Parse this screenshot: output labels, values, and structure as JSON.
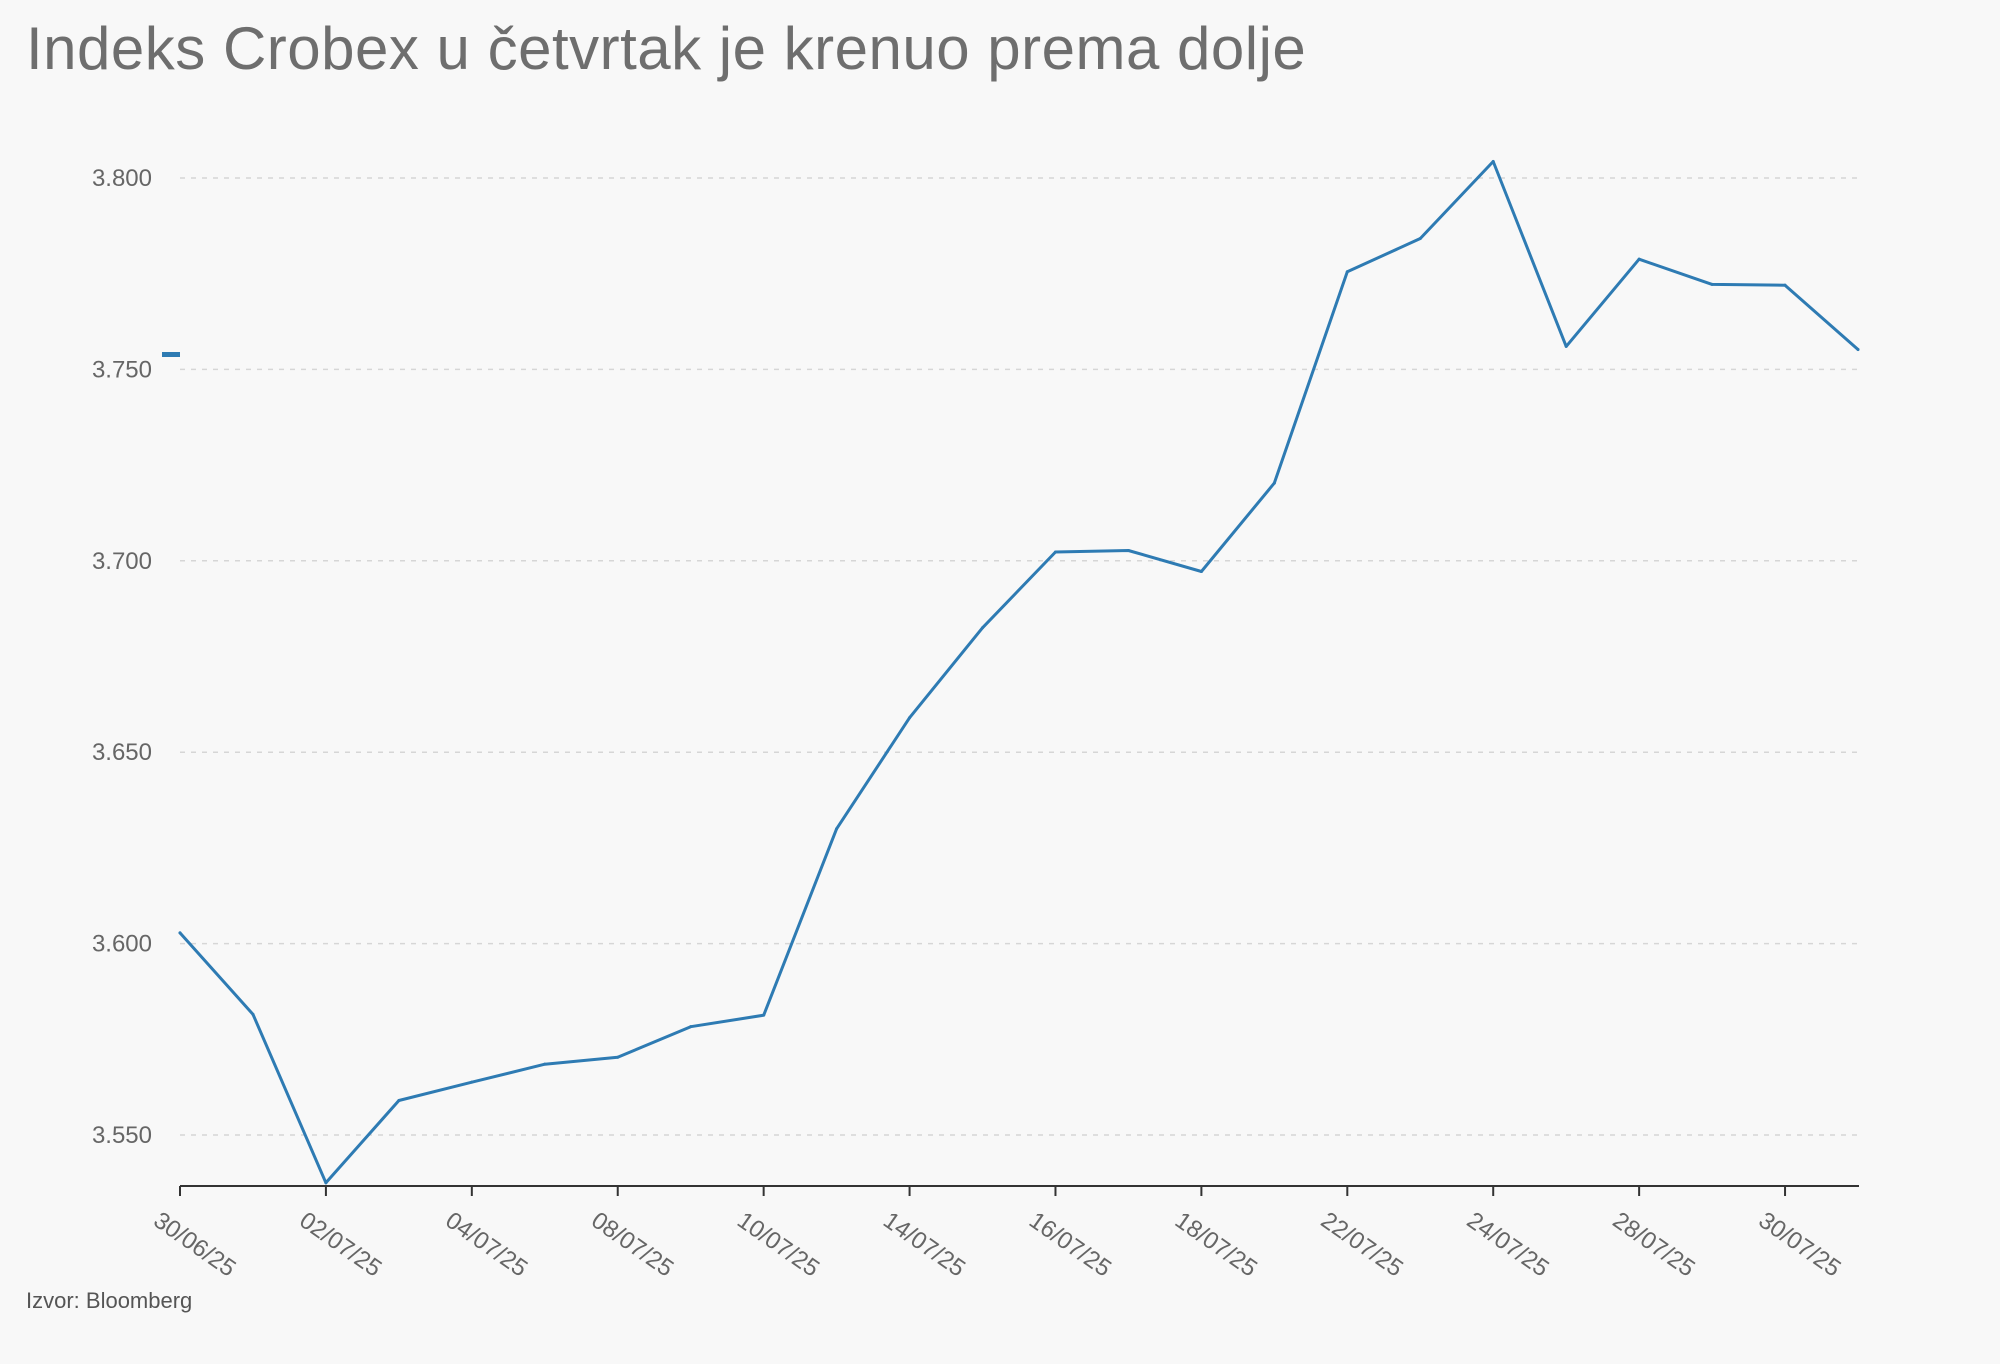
{
  "title": "Indeks Crobex u četvrtak je krenuo prema dolje",
  "source": "Izvor: Bloomberg",
  "chart_data": {
    "type": "line",
    "title": "Indeks Crobex u četvrtak je krenuo prema dolje",
    "xlabel": "",
    "ylabel": "",
    "ylim": [
      3537,
      3805
    ],
    "yticks": [
      3550,
      3600,
      3650,
      3700,
      3750,
      3800
    ],
    "ytick_labels": [
      "3.550",
      "3.600",
      "3.650",
      "3.700",
      "3.750",
      "3.800"
    ],
    "xtick_labels": [
      "30/06/25",
      "02/07/25",
      "04/07/25",
      "08/07/25",
      "10/07/25",
      "14/07/25",
      "16/07/25",
      "18/07/25",
      "22/07/25",
      "24/07/25",
      "28/07/25",
      "30/07/25"
    ],
    "grid": "horizontal dashed",
    "line_color": "#2e7bb3",
    "series": [
      {
        "x": [
          "30/06/25",
          "01/07/25",
          "02/07/25",
          "03/07/25",
          "04/07/25",
          "07/07/25",
          "08/07/25",
          "09/07/25",
          "10/07/25",
          "11/07/25",
          "14/07/25",
          "15/07/25",
          "16/07/25",
          "17/07/25",
          "18/07/25",
          "21/07/25",
          "22/07/25",
          "23/07/25",
          "24/07/25",
          "25/07/25",
          "28/07/25",
          "29/07/25",
          "30/07/25",
          "31/07/25"
        ],
        "values": [
          3602.8,
          3581.5,
          3537.5,
          3559.0,
          3563.8,
          3568.5,
          3570.3,
          3578.3,
          3581.3,
          3630.0,
          3659.0,
          3682.5,
          3702.3,
          3702.7,
          3697.2,
          3720.3,
          3775.5,
          3784.2,
          3804.3,
          3756.0,
          3778.8,
          3772.2,
          3772.0,
          3755.2
        ]
      }
    ]
  }
}
